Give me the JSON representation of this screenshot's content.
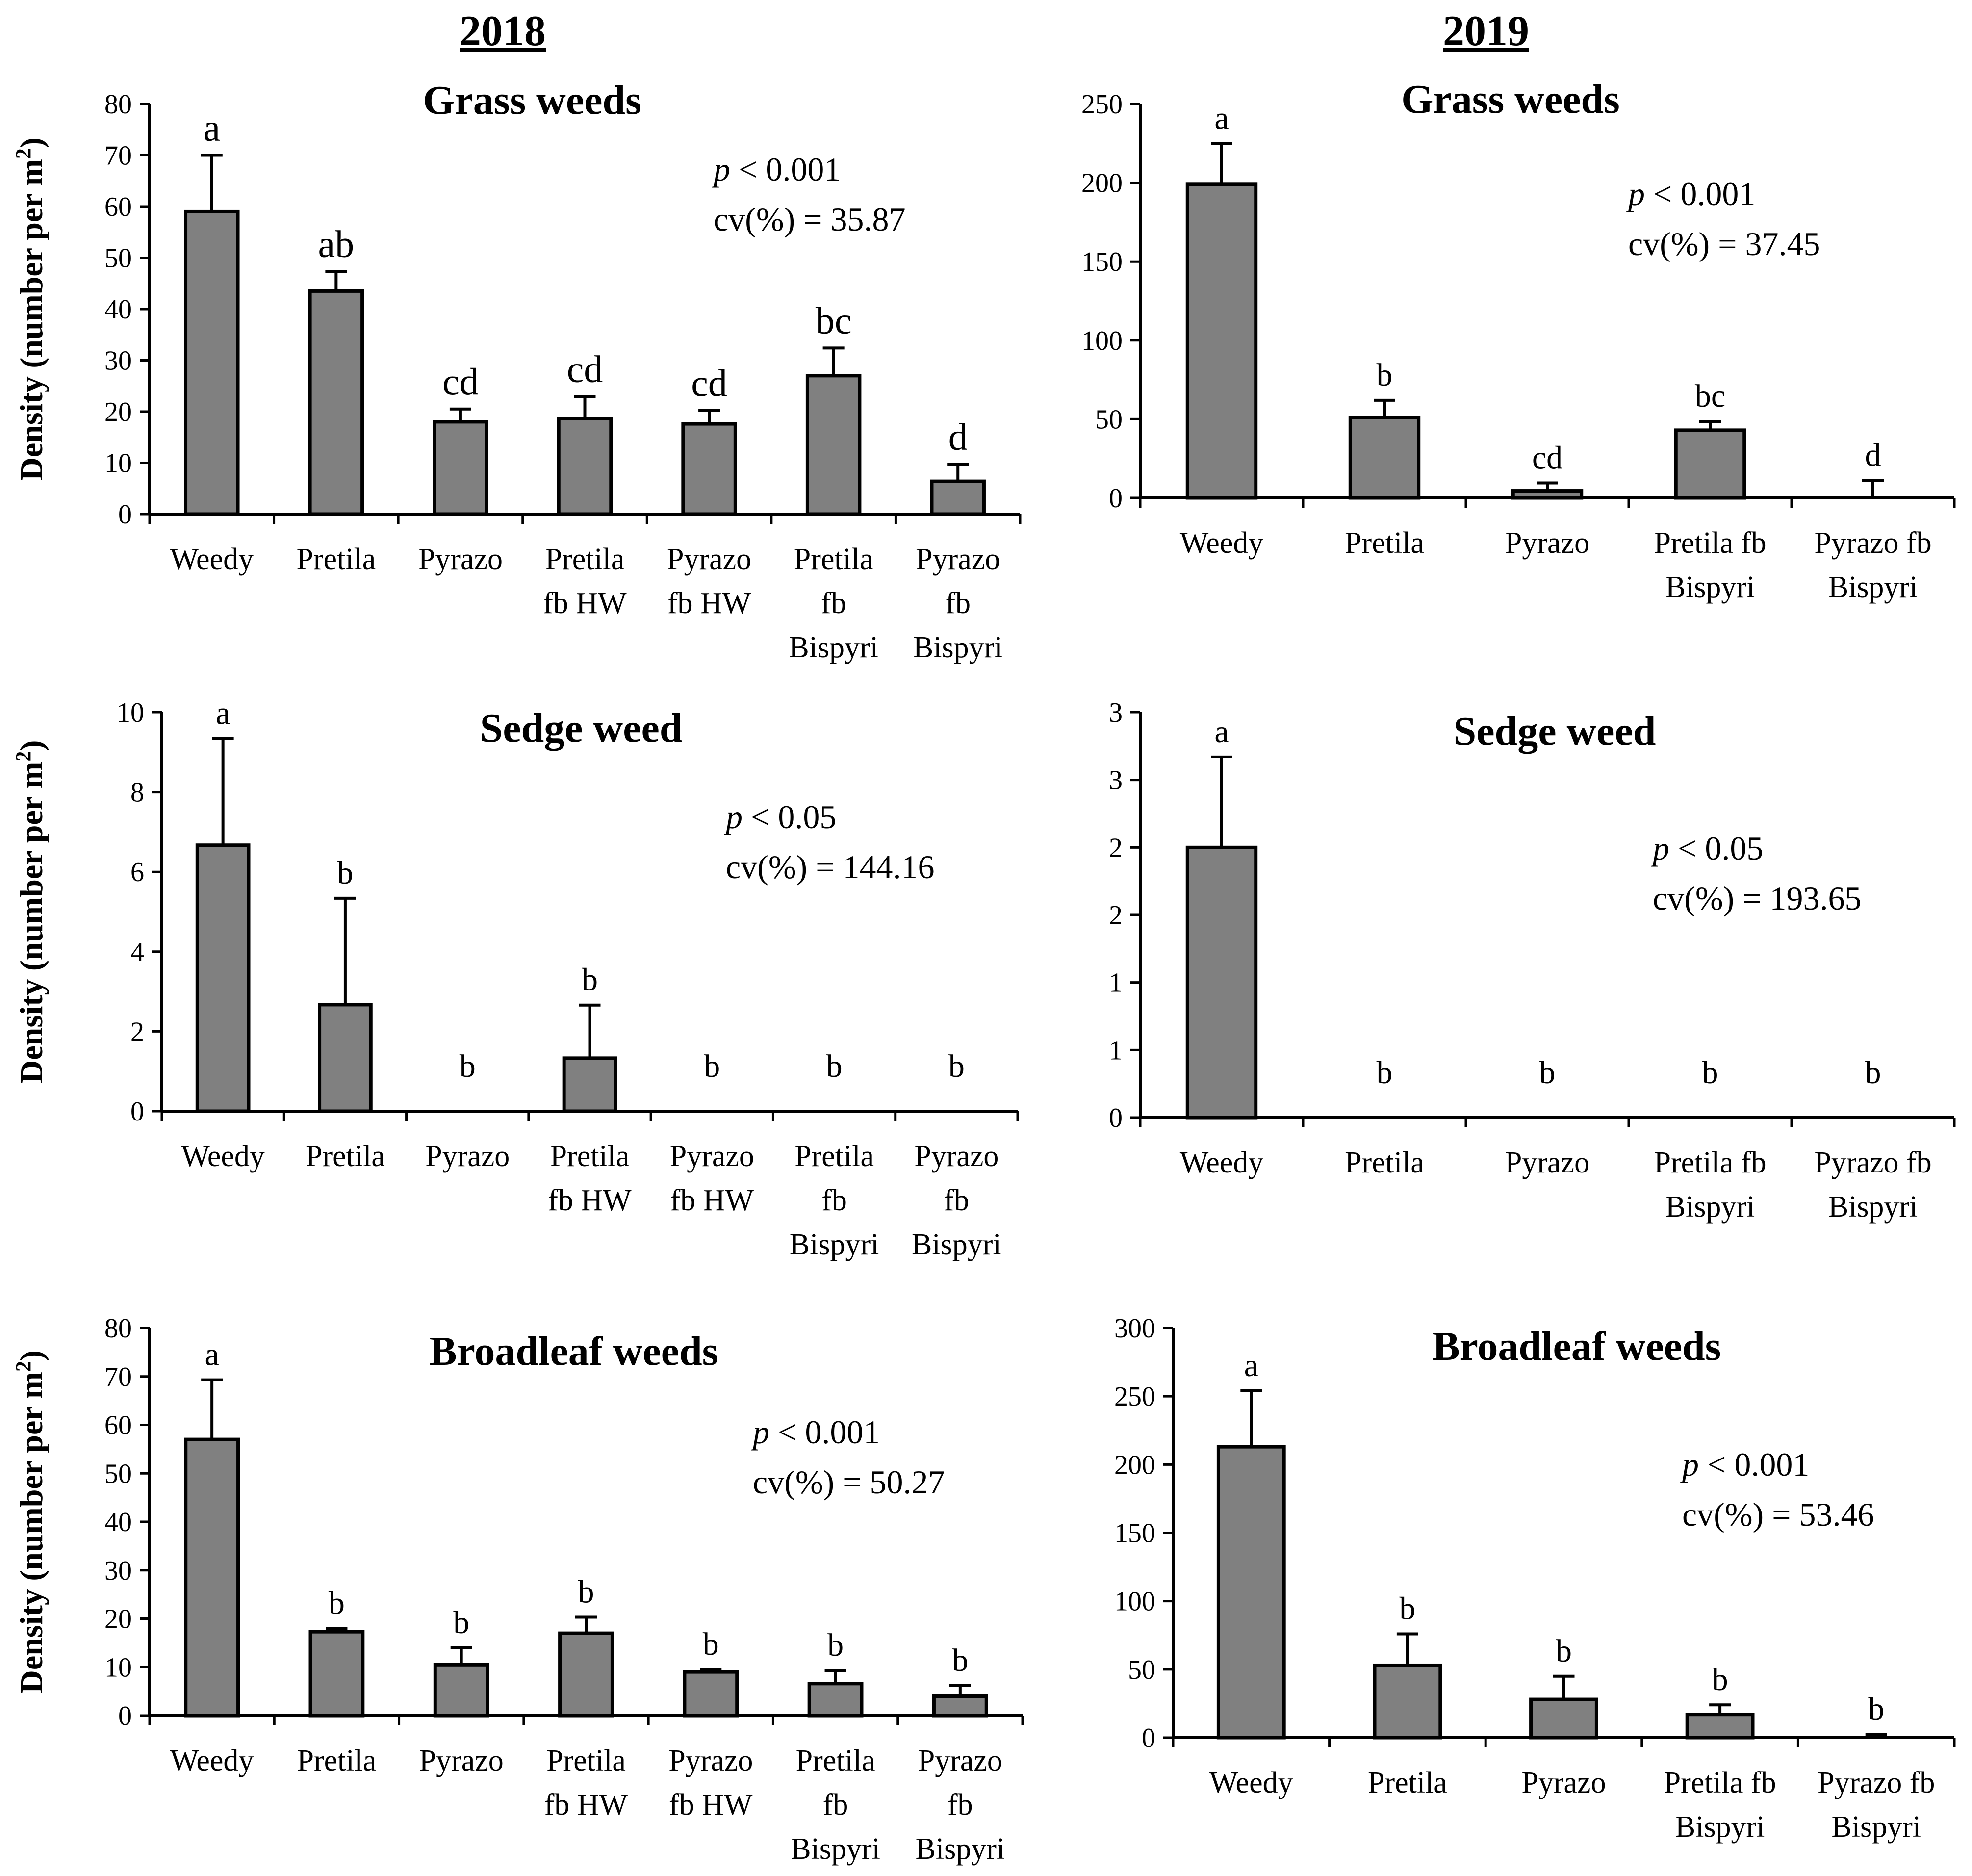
{
  "columns": [
    {
      "year": "2018"
    },
    {
      "year": "2019"
    }
  ],
  "ylabel_main": "Density (number per m",
  "ylabel_sup": "2",
  "ylabel_close": ")",
  "p_prefix": "p",
  "chart_data": [
    {
      "type": "bar",
      "title": "Grass weeds",
      "year": "2018",
      "ylabel": "Density (number per m2)",
      "ylim": [
        0,
        80
      ],
      "yticks": [
        "0",
        "10",
        "20",
        "30",
        "40",
        "50",
        "60",
        "70",
        "80"
      ],
      "categories": [
        [
          "Weedy"
        ],
        [
          "Pretila"
        ],
        [
          "Pyrazo"
        ],
        [
          "Pretila",
          "fb HW"
        ],
        [
          "Pyrazo",
          "fb HW"
        ],
        [
          "Pretila",
          "fb",
          "Bispyri"
        ],
        [
          "Pyrazo",
          "fb",
          "Bispyri"
        ]
      ],
      "values": [
        59,
        43.5,
        18,
        18.7,
        17.6,
        27,
        6.4
      ],
      "errors": [
        11,
        3.8,
        2.5,
        4.2,
        2.6,
        5.4,
        3.3
      ],
      "letters": [
        "a",
        "ab",
        "cd",
        "cd",
        "cd",
        "bc",
        "d"
      ],
      "p_value": " < 0.001",
      "cv": "cv(%) = 35.87"
    },
    {
      "type": "bar",
      "title": "Grass weeds",
      "year": "2019",
      "ylabel": "",
      "ylim": [
        0,
        250
      ],
      "yticks": [
        "0",
        "50",
        "100",
        "150",
        "200",
        "250"
      ],
      "categories": [
        [
          "Weedy"
        ],
        [
          "Pretila"
        ],
        [
          "Pyrazo"
        ],
        [
          "Pretila fb",
          "Bispyri"
        ],
        [
          "Pyrazo fb",
          "Bispyri"
        ]
      ],
      "values": [
        199,
        51,
        4.5,
        43,
        0
      ],
      "errors": [
        26,
        11,
        5,
        5.5,
        11
      ],
      "letters": [
        "a",
        "b",
        "cd",
        "bc",
        "d"
      ],
      "p_value": " < 0.001",
      "cv": "cv(%) = 37.45"
    },
    {
      "type": "bar",
      "title": "Sedge weed",
      "year": "2018",
      "ylabel": "Density (number per m2)",
      "ylim": [
        0,
        10
      ],
      "yticks": [
        "0",
        "2",
        "4",
        "6",
        "8",
        "10"
      ],
      "categories": [
        [
          "Weedy"
        ],
        [
          "Pretila"
        ],
        [
          "Pyrazo"
        ],
        [
          "Pretila",
          "fb HW"
        ],
        [
          "Pyrazo",
          "fb HW"
        ],
        [
          "Pretila",
          "fb",
          "Bispyri"
        ],
        [
          "Pyrazo",
          "fb",
          "Bispyri"
        ]
      ],
      "values": [
        6.67,
        2.67,
        0,
        1.33,
        0,
        0,
        0
      ],
      "errors": [
        2.67,
        2.67,
        0,
        1.33,
        0,
        0,
        0
      ],
      "letters": [
        "a",
        "b",
        "b",
        "b",
        "b",
        "b",
        "b"
      ],
      "p_value": " < 0.05",
      "cv": "cv(%) = 144.16"
    },
    {
      "type": "bar",
      "title": "Sedge weed",
      "year": "2019",
      "ylabel": "",
      "ylim": [
        0,
        3
      ],
      "yticks": [
        "0",
        "1",
        "1",
        "2",
        "2",
        "3",
        "3"
      ],
      "categories": [
        [
          "Weedy"
        ],
        [
          "Pretila"
        ],
        [
          "Pyrazo"
        ],
        [
          "Pretila fb",
          "Bispyri"
        ],
        [
          "Pyrazo fb",
          "Bispyri"
        ]
      ],
      "values": [
        2.0,
        0,
        0,
        0,
        0
      ],
      "errors": [
        0.67,
        0,
        0,
        0,
        0
      ],
      "letters": [
        "a",
        "b",
        "b",
        "b",
        "b"
      ],
      "p_value": " < 0.05",
      "cv": "cv(%) = 193.65"
    },
    {
      "type": "bar",
      "title": "Broadleaf weeds",
      "year": "2018",
      "ylabel": "Density (number per m2)",
      "ylim": [
        0,
        80
      ],
      "yticks": [
        "0",
        "10",
        "20",
        "30",
        "40",
        "50",
        "60",
        "70",
        "80"
      ],
      "categories": [
        [
          "Weedy"
        ],
        [
          "Pretila"
        ],
        [
          "Pyrazo"
        ],
        [
          "Pretila",
          "fb HW"
        ],
        [
          "Pyrazo",
          "fb HW"
        ],
        [
          "Pretila",
          "fb",
          "Bispyri"
        ],
        [
          "Pyrazo",
          "fb",
          "Bispyri"
        ]
      ],
      "values": [
        57,
        17.3,
        10.5,
        17,
        9,
        6.6,
        4
      ],
      "errors": [
        12.3,
        0.7,
        3.5,
        3.3,
        0.5,
        2.7,
        2.2
      ],
      "letters": [
        "a",
        "b",
        "b",
        "b",
        "b",
        "b",
        "b"
      ],
      "p_value": " < 0.001",
      "cv": "cv(%) = 50.27"
    },
    {
      "type": "bar",
      "title": "Broadleaf weeds",
      "year": "2019",
      "ylabel": "",
      "ylim": [
        0,
        300
      ],
      "yticks": [
        "0",
        "50",
        "100",
        "150",
        "200",
        "250",
        "300"
      ],
      "categories": [
        [
          "Weedy"
        ],
        [
          "Pretila"
        ],
        [
          "Pyrazo"
        ],
        [
          "Pretila fb",
          "Bispyri"
        ],
        [
          "Pyrazo fb",
          "Bispyri"
        ]
      ],
      "values": [
        213,
        53,
        28,
        17,
        0
      ],
      "errors": [
        41,
        23,
        17,
        7,
        2.5
      ],
      "letters": [
        "a",
        "b",
        "b",
        "b",
        "b"
      ],
      "p_value": " < 0.001",
      "cv": "cv(%) = 53.46"
    }
  ],
  "colors": {
    "bar_fill": "#808080",
    "stroke": "#000000"
  }
}
